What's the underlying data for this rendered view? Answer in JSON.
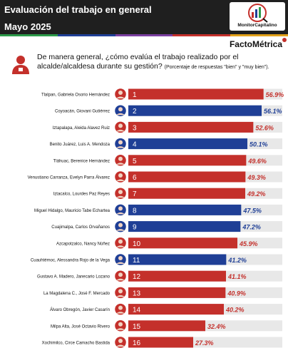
{
  "header": {
    "title": "Evaluación del trabajo en general",
    "subtitle": "Mayo 2025",
    "logo_text": "MonitorCapitalino",
    "source": "FactoMétrica"
  },
  "question": {
    "text": "De manera general, ¿cómo evalúa el trabajo realizado por el alcalde/alcaldesa durante su gestión?",
    "note": "(Porcentaje de respuestas \"bien\" y \"muy bien\")."
  },
  "colors": {
    "red": "#c4302b",
    "blue": "#1f3f96",
    "header": "#1f1f1f",
    "track": "#e8e8e8"
  },
  "chart_data": {
    "type": "bar",
    "orientation": "horizontal",
    "x_unit": "%",
    "xlim": [
      0,
      60
    ],
    "categories": [
      "Tlalpan, Gabriela Osorio Hernández",
      "Coyoacán, Giovani Gutiérrez",
      "Iztapalapa, Aleida Alavez Ruiz",
      "Benito Juárez, Luis A. Mendoza",
      "Tláhuac, Berenice Hernández",
      "Venustiano Carranza, Evelyn Parra Álvarez",
      "Iztacalco, Lourdes Paz Reyes",
      "Miguel Hidalgo, Mauricio Tabe Echartea",
      "Cuajimalpa, Carlos Orvañanos",
      "Azcapotzalco, Nancy Núñez",
      "Cuauhtémoc, Alessandra Rojo de la Vega",
      "Gustavo A. Madero, Janecario Lozano",
      "La Magdalena C., José F. Mercado",
      "Álvaro Obregón, Javier Casarín",
      "Milpa Alta, José Octavio Rivero",
      "Xochimilco, Circe Camacho Bastida"
    ],
    "ranks": [
      "1",
      "2",
      "3",
      "4",
      "5",
      "6",
      "7",
      "8",
      "9",
      "10",
      "11",
      "12",
      "13",
      "14",
      "15",
      "16"
    ],
    "values": [
      56.9,
      56.1,
      52.6,
      50.1,
      49.6,
      49.3,
      49.2,
      47.5,
      47.2,
      45.9,
      41.2,
      41.1,
      40.9,
      40.2,
      32.4,
      27.3
    ],
    "value_labels": [
      "56.9%",
      "56.1%",
      "52.6%",
      "50.1%",
      "49.6%",
      "49.3%",
      "49.2%",
      "47.5%",
      "47.2%",
      "45.9%",
      "41.2%",
      "41.1%",
      "40.9%",
      "40.2%",
      "32.4%",
      "27.3%"
    ],
    "bar_colors": [
      "red",
      "blue",
      "red",
      "blue",
      "red",
      "red",
      "red",
      "blue",
      "blue",
      "red",
      "blue",
      "red",
      "red",
      "red",
      "red",
      "red"
    ]
  }
}
